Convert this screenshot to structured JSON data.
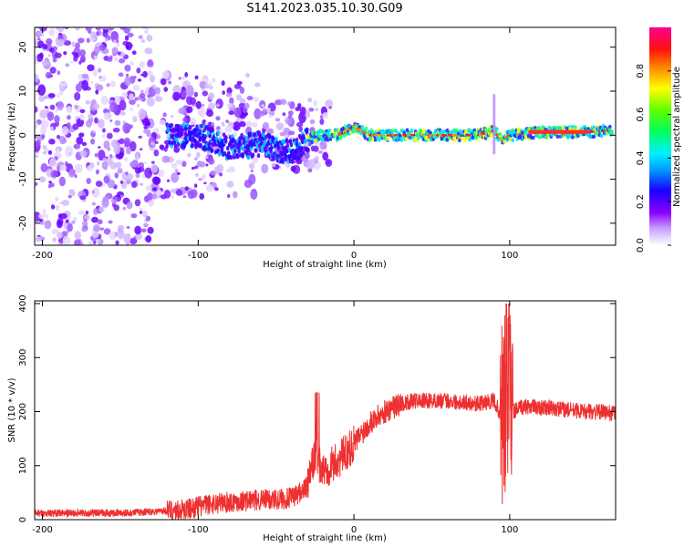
{
  "title": "S141.2023.035.10.30.G09",
  "chart_data": [
    {
      "type": "heatmap",
      "xlabel": "Height of straight line (km)",
      "ylabel": "Frequency (Hz)",
      "xlim": [
        -205,
        168
      ],
      "ylim": [
        -25,
        24.5
      ],
      "x_ticks": [
        -200,
        -100,
        0,
        100
      ],
      "y_ticks": [
        20,
        10,
        0,
        -10,
        -20
      ],
      "colorbar": {
        "label": "Normalized spectral amplitude",
        "range": [
          0,
          1
        ],
        "ticks": [
          0.0,
          0.2,
          0.4,
          0.6,
          0.8
        ],
        "colormap": [
          "#ffffff",
          "#8a00ff",
          "#0000ff",
          "#00e5ff",
          "#00ff40",
          "#ffff00",
          "#ff8000",
          "#ff0000",
          "#ff0080"
        ]
      },
      "ridge": {
        "description_points_x": [
          -120,
          -100,
          -80,
          -60,
          -40,
          -30,
          -20,
          -10,
          -5,
          0,
          10,
          30,
          60,
          80,
          90,
          95,
          100,
          120,
          150,
          165
        ],
        "description_points_y": [
          0,
          0,
          -3,
          -2,
          -4,
          -1,
          0,
          0,
          1,
          2,
          0,
          0,
          0,
          0,
          1,
          -1,
          0,
          0.7,
          0.7,
          1
        ]
      }
    },
    {
      "type": "line",
      "xlabel": "Height of straight line (km)",
      "ylabel": "SNR (10 * v/v)",
      "xlim": [
        -205,
        168
      ],
      "ylim": [
        0,
        405
      ],
      "x_ticks": [
        -200,
        -100,
        0,
        100
      ],
      "y_ticks": [
        0,
        100,
        200,
        300,
        400
      ],
      "color": "#ee3030",
      "envelope_x": [
        -205,
        -150,
        -110,
        -90,
        -70,
        -50,
        -40,
        -30,
        -25,
        -20,
        -10,
        0,
        10,
        20,
        30,
        40,
        60,
        80,
        90,
        95,
        98,
        100,
        102,
        110,
        130,
        150,
        168
      ],
      "envelope_y": [
        12,
        12,
        18,
        30,
        35,
        38,
        40,
        60,
        120,
        90,
        110,
        140,
        180,
        200,
        215,
        220,
        220,
        215,
        220,
        190,
        220,
        210,
        200,
        210,
        205,
        200,
        198
      ]
    }
  ]
}
